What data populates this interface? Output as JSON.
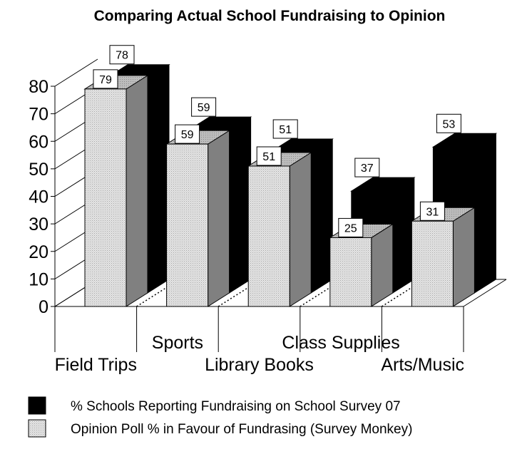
{
  "chart_data": {
    "type": "bar",
    "title": "Comparing Actual School Fundraising to Opinion",
    "categories": [
      "Field Trips",
      "Sports",
      "Library Books",
      "Class Supplies",
      "Arts/Music"
    ],
    "series": [
      {
        "name": "% Schools Reporting Fundraising on School Survey 07",
        "values": [
          78,
          59,
          51,
          37,
          53
        ],
        "color": "#000000"
      },
      {
        "name": "Opinion Poll % in Favour of Fundrasing (Survey Monkey)",
        "values": [
          79,
          59,
          51,
          25,
          31
        ],
        "color": "#d9d9d9"
      }
    ],
    "yticks": [
      0,
      10,
      20,
      30,
      40,
      50,
      60,
      70,
      80
    ],
    "ylim": [
      0,
      80
    ],
    "xlabel": "",
    "ylabel": "",
    "style": "3d-clustered",
    "legend_position": "bottom"
  }
}
